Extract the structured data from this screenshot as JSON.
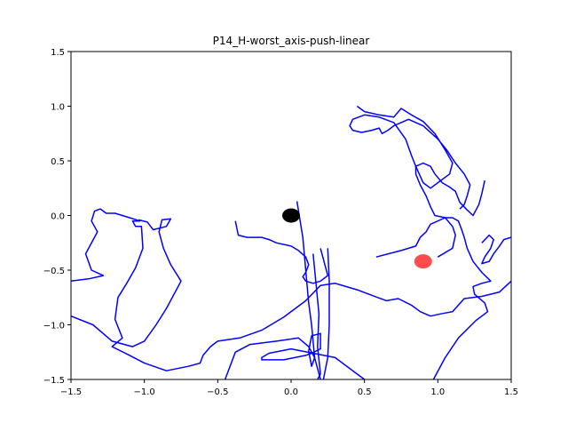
{
  "chart_data": {
    "type": "line",
    "title": "P14_H-worst_axis-push-linear",
    "xlabel": "",
    "ylabel": "",
    "xlim": [
      -1.5,
      1.5
    ],
    "ylim": [
      -1.5,
      1.5
    ],
    "xticks": [
      "−1.5",
      "−1.0",
      "−0.5",
      "0.0",
      "0.5",
      "1.0",
      "1.5"
    ],
    "yticks": [
      "−1.5",
      "−1.0",
      "−0.5",
      "0.0",
      "0.5",
      "1.0",
      "1.5"
    ],
    "grid": false,
    "colors": {
      "trajectory": "#0000ff",
      "start": "#000000",
      "goal": "#ff0000"
    },
    "markers": [
      {
        "name": "start",
        "x": 0.0,
        "y": 0.0,
        "color": "#000000"
      },
      {
        "name": "goal",
        "x": 0.9,
        "y": -0.42,
        "color": "#ff0000"
      }
    ],
    "series": [
      {
        "color": "#0000ff",
        "points": [
          [
            -1.5,
            -0.6
          ],
          [
            -1.38,
            -0.58
          ],
          [
            -1.28,
            -0.55
          ],
          [
            -1.36,
            -0.5
          ],
          [
            -1.4,
            -0.35
          ],
          [
            -1.32,
            -0.15
          ],
          [
            -1.36,
            -0.05
          ],
          [
            -1.34,
            0.04
          ],
          [
            -1.3,
            0.06
          ],
          [
            -1.26,
            0.02
          ],
          [
            -1.2,
            0.02
          ],
          [
            -1.1,
            -0.02
          ],
          [
            -1.03,
            -0.05
          ],
          [
            -1.08,
            -0.05
          ],
          [
            -1.06,
            -0.1
          ],
          [
            -1.02,
            -0.1
          ],
          [
            -1.01,
            -0.3
          ],
          [
            -1.06,
            -0.48
          ],
          [
            -1.12,
            -0.62
          ],
          [
            -1.18,
            -0.75
          ],
          [
            -1.2,
            -0.95
          ],
          [
            -1.15,
            -1.12
          ],
          [
            -1.22,
            -1.2
          ],
          [
            -1.1,
            -1.28
          ],
          [
            -1.0,
            -1.35
          ],
          [
            -0.85,
            -1.42
          ],
          [
            -0.7,
            -1.38
          ],
          [
            -0.62,
            -1.35
          ],
          [
            -0.6,
            -1.28
          ],
          [
            -0.55,
            -1.2
          ],
          [
            -0.5,
            -1.15
          ],
          [
            -0.35,
            -1.12
          ],
          [
            -0.2,
            -1.05
          ],
          [
            -0.05,
            -0.93
          ],
          [
            0.1,
            -0.78
          ],
          [
            0.2,
            -0.64
          ],
          [
            0.3,
            -0.62
          ],
          [
            0.45,
            -0.68
          ],
          [
            0.55,
            -0.73
          ],
          [
            0.65,
            -0.78
          ],
          [
            0.73,
            -0.76
          ],
          [
            0.82,
            -0.82
          ],
          [
            0.88,
            -0.88
          ],
          [
            0.95,
            -0.92
          ],
          [
            1.02,
            -0.9
          ],
          [
            1.1,
            -0.88
          ],
          [
            1.18,
            -0.76
          ],
          [
            1.3,
            -0.74
          ],
          [
            1.42,
            -0.7
          ],
          [
            1.5,
            -0.6
          ]
        ]
      },
      {
        "color": "#0000ff",
        "points": [
          [
            -1.5,
            -0.92
          ],
          [
            -1.35,
            -1.0
          ],
          [
            -1.22,
            -1.15
          ],
          [
            -1.08,
            -1.2
          ],
          [
            -1.0,
            -1.15
          ],
          [
            -0.92,
            -1.0
          ],
          [
            -0.85,
            -0.85
          ],
          [
            -0.75,
            -0.6
          ],
          [
            -0.82,
            -0.45
          ],
          [
            -0.87,
            -0.3
          ],
          [
            -0.9,
            -0.15
          ],
          [
            -0.88,
            -0.04
          ],
          [
            -0.82,
            -0.03
          ],
          [
            -0.85,
            -0.1
          ],
          [
            -0.94,
            -0.13
          ],
          [
            -0.98,
            -0.06
          ],
          [
            -1.04,
            -0.04
          ]
        ]
      },
      {
        "color": "#0000ff",
        "points": [
          [
            -0.38,
            -0.05
          ],
          [
            -0.36,
            -0.18
          ],
          [
            -0.3,
            -0.2
          ],
          [
            -0.2,
            -0.2
          ],
          [
            -0.15,
            -0.22
          ],
          [
            -0.1,
            -0.25
          ],
          [
            0.0,
            -0.28
          ],
          [
            0.05,
            -0.32
          ],
          [
            0.1,
            -0.38
          ],
          [
            0.12,
            -0.45
          ],
          [
            0.1,
            -0.52
          ],
          [
            0.08,
            -0.56
          ],
          [
            0.1,
            -0.6
          ],
          [
            0.15,
            -0.62
          ],
          [
            0.2,
            -0.6
          ],
          [
            0.25,
            -0.55
          ],
          [
            0.22,
            -0.4
          ],
          [
            0.2,
            -0.3
          ]
        ]
      },
      {
        "color": "#0000ff",
        "points": [
          [
            -0.45,
            -1.5
          ],
          [
            -0.38,
            -1.25
          ],
          [
            -0.28,
            -1.18
          ],
          [
            -0.1,
            -1.15
          ],
          [
            0.05,
            -1.12
          ],
          [
            0.12,
            -1.2
          ],
          [
            0.16,
            -1.3
          ],
          [
            0.14,
            -1.38
          ],
          [
            0.12,
            -1.24
          ],
          [
            0.14,
            -1.1
          ],
          [
            0.2,
            -1.08
          ],
          [
            0.2,
            -1.22
          ],
          [
            0.14,
            -1.26
          ],
          [
            0.1,
            -1.28
          ],
          [
            -0.05,
            -1.32
          ],
          [
            -0.2,
            -1.32
          ],
          [
            -0.2,
            -1.3
          ],
          [
            -0.15,
            -1.26
          ],
          [
            0.0,
            -1.22
          ],
          [
            0.3,
            -1.3
          ],
          [
            0.45,
            -1.45
          ],
          [
            0.5,
            -1.5
          ]
        ]
      },
      {
        "color": "#0000ff",
        "points": [
          [
            0.04,
            0.13
          ],
          [
            0.08,
            -0.2
          ],
          [
            0.12,
            -0.8
          ],
          [
            0.14,
            -1.0
          ],
          [
            0.16,
            -1.3
          ],
          [
            0.2,
            -1.5
          ]
        ]
      },
      {
        "color": "#0000ff",
        "points": [
          [
            0.15,
            -0.35
          ],
          [
            0.19,
            -0.9
          ],
          [
            0.18,
            -1.2
          ],
          [
            0.2,
            -1.45
          ],
          [
            0.18,
            -1.5
          ]
        ]
      },
      {
        "color": "#0000ff",
        "points": [
          [
            0.25,
            -0.3
          ],
          [
            0.26,
            -0.6
          ],
          [
            0.26,
            -1.0
          ],
          [
            0.25,
            -1.3
          ],
          [
            0.22,
            -1.5
          ]
        ]
      },
      {
        "color": "#0000ff",
        "points": [
          [
            0.97,
            -1.5
          ],
          [
            1.05,
            -1.3
          ],
          [
            1.14,
            -1.12
          ],
          [
            1.26,
            -0.96
          ],
          [
            1.34,
            -0.88
          ],
          [
            1.32,
            -0.8
          ],
          [
            1.25,
            -0.72
          ],
          [
            1.24,
            -0.65
          ],
          [
            1.3,
            -0.62
          ],
          [
            1.36,
            -0.6
          ],
          [
            1.3,
            -0.52
          ],
          [
            1.24,
            -0.42
          ],
          [
            1.2,
            -0.3
          ],
          [
            1.18,
            -0.2
          ],
          [
            1.16,
            -0.12
          ],
          [
            1.14,
            -0.05
          ],
          [
            1.1,
            -0.02
          ],
          [
            1.05,
            -0.02
          ],
          [
            0.98,
            0.0
          ],
          [
            0.95,
            0.08
          ],
          [
            0.92,
            0.18
          ],
          [
            0.88,
            0.28
          ],
          [
            0.85,
            0.38
          ],
          [
            0.85,
            0.45
          ],
          [
            0.9,
            0.48
          ],
          [
            0.95,
            0.45
          ],
          [
            0.98,
            0.38
          ],
          [
            1.03,
            0.3
          ],
          [
            1.08,
            0.26
          ],
          [
            1.12,
            0.22
          ],
          [
            1.15,
            0.12
          ],
          [
            1.2,
            0.05
          ],
          [
            1.24,
            0.0
          ],
          [
            1.28,
            0.1
          ],
          [
            1.3,
            0.2
          ],
          [
            1.32,
            0.32
          ]
        ]
      },
      {
        "color": "#0000ff",
        "points": [
          [
            0.45,
            1.0
          ],
          [
            0.5,
            0.95
          ],
          [
            0.6,
            0.92
          ],
          [
            0.7,
            0.9
          ],
          [
            0.75,
            0.98
          ],
          [
            0.82,
            0.92
          ],
          [
            0.9,
            0.86
          ],
          [
            0.98,
            0.75
          ],
          [
            1.05,
            0.6
          ],
          [
            1.1,
            0.48
          ],
          [
            1.08,
            0.38
          ],
          [
            1.0,
            0.3
          ],
          [
            0.95,
            0.25
          ],
          [
            0.9,
            0.3
          ],
          [
            0.85,
            0.45
          ],
          [
            0.82,
            0.55
          ],
          [
            0.78,
            0.7
          ],
          [
            0.7,
            0.85
          ],
          [
            0.6,
            0.9
          ],
          [
            0.5,
            0.92
          ],
          [
            0.42,
            0.88
          ],
          [
            0.4,
            0.82
          ],
          [
            0.42,
            0.78
          ],
          [
            0.48,
            0.76
          ],
          [
            0.55,
            0.78
          ],
          [
            0.6,
            0.8
          ],
          [
            0.62,
            0.75
          ],
          [
            0.66,
            0.78
          ],
          [
            0.7,
            0.82
          ],
          [
            0.8,
            0.88
          ],
          [
            0.9,
            0.82
          ],
          [
            1.0,
            0.7
          ],
          [
            1.06,
            0.6
          ],
          [
            1.12,
            0.48
          ],
          [
            1.18,
            0.38
          ],
          [
            1.22,
            0.28
          ],
          [
            1.2,
            0.18
          ],
          [
            1.18,
            0.1
          ],
          [
            1.15,
            0.06
          ]
        ]
      },
      {
        "color": "#0000ff",
        "points": [
          [
            0.58,
            -0.38
          ],
          [
            0.75,
            -0.32
          ],
          [
            0.85,
            -0.28
          ],
          [
            0.88,
            -0.2
          ],
          [
            0.92,
            -0.15
          ],
          [
            0.95,
            -0.08
          ],
          [
            1.05,
            -0.02
          ],
          [
            1.1,
            -0.1
          ],
          [
            1.12,
            -0.18
          ],
          [
            1.1,
            -0.3
          ],
          [
            1.0,
            -0.38
          ]
        ]
      },
      {
        "color": "#0000ff",
        "points": [
          [
            1.5,
            -0.2
          ],
          [
            1.45,
            -0.22
          ],
          [
            1.42,
            -0.28
          ],
          [
            1.38,
            -0.35
          ],
          [
            1.35,
            -0.42
          ],
          [
            1.3,
            -0.44
          ],
          [
            1.32,
            -0.38
          ],
          [
            1.36,
            -0.3
          ],
          [
            1.38,
            -0.22
          ],
          [
            1.35,
            -0.18
          ],
          [
            1.3,
            -0.25
          ]
        ]
      }
    ]
  }
}
